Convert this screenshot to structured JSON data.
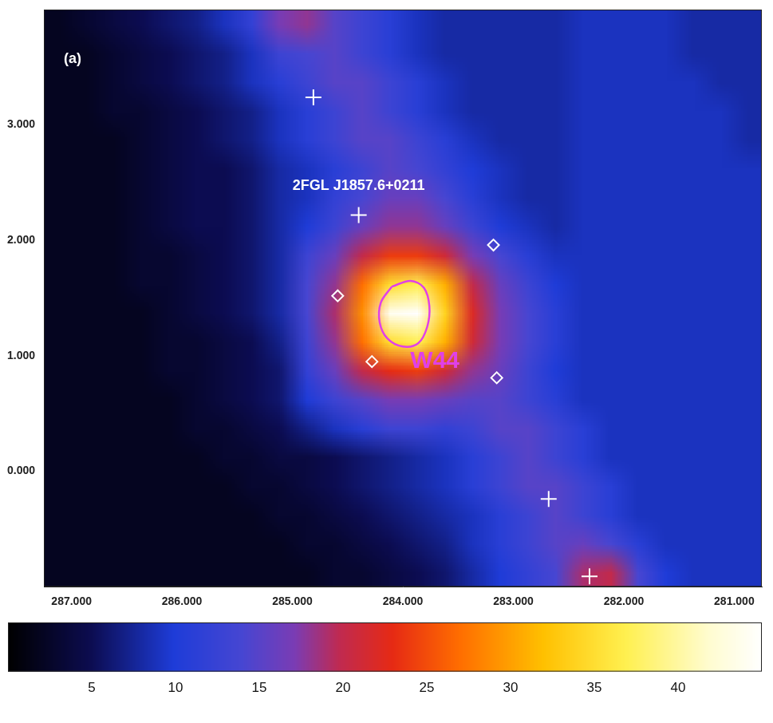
{
  "chart_data": {
    "type": "heatmap",
    "xlim": [
      287.25,
      280.75
    ],
    "ylim": [
      -1,
      4
    ],
    "xticks": [
      {
        "value": 287,
        "label": "287.000"
      },
      {
        "value": 286,
        "label": "286.000"
      },
      {
        "value": 285,
        "label": "285.000"
      },
      {
        "value": 284,
        "label": "284.000"
      },
      {
        "value": 283,
        "label": "283.000"
      },
      {
        "value": 282,
        "label": "282.000"
      },
      {
        "value": 281,
        "label": "281.000"
      }
    ],
    "yticks": [
      {
        "value": 0,
        "label": "0.000"
      },
      {
        "value": 1,
        "label": "1.000"
      },
      {
        "value": 2,
        "label": "2.000"
      },
      {
        "value": 3,
        "label": "3.000"
      }
    ],
    "grid": false,
    "x": [
      287.125,
      286.875,
      286.625,
      286.375,
      286.125,
      285.875,
      285.625,
      285.375,
      285.125,
      284.875,
      284.625,
      284.375,
      284.125,
      283.875,
      283.625,
      283.375,
      283.125,
      282.875,
      282.625,
      282.375,
      282.125,
      281.875,
      281.625,
      281.375,
      281.125,
      280.875
    ],
    "y": [
      3.875,
      3.625,
      3.375,
      3.125,
      2.875,
      2.625,
      2.375,
      2.125,
      1.875,
      1.625,
      1.375,
      1.125,
      0.875,
      0.625,
      0.375,
      0.125,
      -0.125,
      -0.375,
      -0.625,
      -0.875
    ],
    "values": [
      [
        2,
        3,
        4,
        5,
        6,
        7,
        9,
        12,
        17,
        18,
        15,
        13,
        11,
        9,
        8,
        8,
        8,
        8,
        8,
        9,
        9,
        9,
        9,
        8,
        8,
        8
      ],
      [
        2,
        2,
        3,
        4,
        5,
        6,
        7,
        9,
        13,
        14,
        15,
        13,
        11,
        9,
        8,
        8,
        8,
        8,
        8,
        9,
        9,
        9,
        9,
        8,
        8,
        8
      ],
      [
        2,
        2,
        3,
        4,
        5,
        6,
        7,
        9,
        11,
        13,
        15,
        15,
        13,
        11,
        9,
        8,
        8,
        8,
        8,
        9,
        9,
        9,
        9,
        9,
        8,
        8
      ],
      [
        2,
        2,
        3,
        3,
        4,
        5,
        6,
        7,
        9,
        11,
        13,
        15,
        13,
        11,
        9,
        8,
        8,
        8,
        8,
        9,
        9,
        9,
        9,
        9,
        9,
        8
      ],
      [
        2,
        2,
        2,
        3,
        4,
        5,
        6,
        7,
        9,
        11,
        13,
        15,
        15,
        13,
        11,
        9,
        8,
        8,
        8,
        9,
        9,
        9,
        9,
        9,
        9,
        8
      ],
      [
        2,
        2,
        2,
        3,
        4,
        5,
        5,
        6,
        8,
        9,
        11,
        13,
        15,
        14,
        12,
        10,
        9,
        8,
        8,
        9,
        9,
        9,
        9,
        9,
        9,
        9
      ],
      [
        2,
        2,
        2,
        3,
        4,
        5,
        5,
        6,
        8,
        9,
        12,
        14,
        16,
        16,
        14,
        11,
        9,
        8,
        8,
        9,
        9,
        9,
        9,
        9,
        9,
        9
      ],
      [
        2,
        2,
        2,
        3,
        4,
        5,
        5,
        6,
        8,
        10,
        13,
        16,
        18,
        18,
        16,
        13,
        10,
        9,
        8,
        9,
        9,
        9,
        9,
        9,
        9,
        9
      ],
      [
        2,
        2,
        2,
        3,
        3,
        4,
        5,
        6,
        8,
        13,
        16,
        20,
        24,
        24,
        21,
        17,
        14,
        11,
        9,
        9,
        9,
        9,
        9,
        9,
        9,
        9
      ],
      [
        2,
        2,
        2,
        3,
        3,
        4,
        5,
        6,
        8,
        14,
        18,
        27,
        35,
        37,
        31,
        20,
        16,
        13,
        10,
        9,
        9,
        9,
        9,
        9,
        9,
        9
      ],
      [
        2,
        2,
        2,
        2,
        3,
        4,
        5,
        6,
        8,
        14,
        19,
        29,
        44,
        45,
        34,
        22,
        17,
        14,
        11,
        9,
        9,
        9,
        9,
        9,
        9,
        9
      ],
      [
        2,
        2,
        2,
        2,
        3,
        3,
        4,
        5,
        7,
        13,
        18,
        27,
        35,
        37,
        31,
        21,
        17,
        14,
        11,
        9,
        9,
        9,
        9,
        9,
        9,
        9
      ],
      [
        2,
        2,
        2,
        2,
        3,
        3,
        4,
        5,
        6,
        12,
        16,
        20,
        23,
        24,
        21,
        18,
        16,
        13,
        10,
        9,
        9,
        9,
        9,
        9,
        9,
        9
      ],
      [
        2,
        2,
        2,
        2,
        2,
        3,
        4,
        5,
        6,
        10,
        13,
        15,
        17,
        17,
        16,
        15,
        15,
        13,
        11,
        9,
        9,
        9,
        9,
        9,
        9,
        9
      ],
      [
        2,
        2,
        2,
        2,
        2,
        3,
        3,
        4,
        5,
        7,
        9,
        11,
        13,
        13,
        12,
        13,
        15,
        15,
        13,
        11,
        9,
        9,
        9,
        9,
        9,
        9
      ],
      [
        2,
        2,
        2,
        2,
        2,
        2,
        3,
        3,
        4,
        4,
        5,
        6,
        7,
        8,
        9,
        11,
        13,
        15,
        13,
        11,
        9,
        9,
        9,
        9,
        9,
        9
      ],
      [
        2,
        2,
        2,
        2,
        2,
        2,
        2,
        3,
        3,
        4,
        5,
        6,
        7,
        8,
        9,
        11,
        13,
        15,
        15,
        13,
        11,
        9,
        9,
        9,
        9,
        9
      ],
      [
        2,
        2,
        2,
        2,
        2,
        2,
        2,
        2,
        3,
        3,
        4,
        5,
        6,
        7,
        8,
        9,
        11,
        13,
        15,
        13,
        11,
        9,
        9,
        9,
        9,
        9
      ],
      [
        2,
        2,
        2,
        2,
        2,
        2,
        2,
        2,
        2,
        3,
        3,
        4,
        5,
        6,
        7,
        9,
        11,
        13,
        15,
        16,
        14,
        11,
        9,
        9,
        9,
        9
      ],
      [
        2,
        2,
        2,
        2,
        2,
        2,
        2,
        2,
        2,
        2,
        3,
        3,
        4,
        5,
        6,
        8,
        10,
        12,
        14,
        19,
        20,
        14,
        10,
        9,
        9,
        9
      ]
    ],
    "colorbar": {
      "range": [
        0,
        45
      ],
      "ticks": [
        5,
        10,
        15,
        20,
        25,
        30,
        35,
        40
      ]
    },
    "series": [
      {
        "type": "scatter",
        "marker": "cross",
        "color": "#ffffff",
        "x": [
          284.81,
          284.4,
          282.68,
          282.31
        ],
        "y": [
          3.24,
          2.22,
          -0.24,
          -0.91
        ]
      },
      {
        "type": "scatter",
        "marker": "diamond",
        "color": "#ffffff",
        "x": [
          284.59,
          284.28,
          283.18,
          283.15
        ],
        "y": [
          1.52,
          0.95,
          1.96,
          0.81
        ]
      },
      {
        "type": "line",
        "line_style": "solid",
        "color": "#e040e8",
        "x": [
          284.1,
          283.93,
          283.81,
          283.76,
          283.78,
          283.86,
          284.0,
          284.14,
          284.21,
          284.2
        ],
        "y": [
          1.6,
          1.65,
          1.59,
          1.43,
          1.25,
          1.11,
          1.08,
          1.15,
          1.29,
          1.46
        ]
      }
    ],
    "annotations": [
      {
        "text": "(a)",
        "x": 286.99,
        "y": 3.57,
        "color": "#ffffff"
      },
      {
        "text": "2FGL J1857.6+0211",
        "x": 284.4,
        "y": 2.47,
        "color": "#ffffff"
      },
      {
        "text": "W44",
        "x": 283.71,
        "y": 0.95,
        "color": "#e040e8"
      }
    ]
  }
}
